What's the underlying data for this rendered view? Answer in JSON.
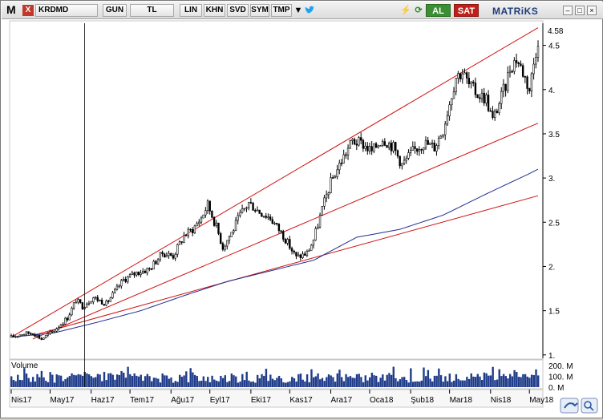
{
  "toolbar": {
    "app_icon": "M",
    "symbol_icon": "X",
    "symbol": "KRDMD",
    "period": "GUN",
    "currency": "TL",
    "scale": "LIN",
    "kahn_label": "KHN",
    "svd_label": "SVD",
    "sym_label": "SYM",
    "tmp_label": "TMP",
    "menu_icon": "dropdown-arrow-icon",
    "twitter_icon": "bird-icon",
    "lightning_icon": "lightning-icon",
    "refresh_icon": "refresh-icon",
    "buy_label": "AL",
    "sell_label": "SAT",
    "brand": "MATRiKS",
    "window_buttons": [
      "–",
      "□",
      "×"
    ]
  },
  "colors": {
    "candle": "#000000",
    "channel_line": "#d01010",
    "moving_average": "#1f2f8f",
    "volume": "#1f3c8a",
    "buy": "#3a8f32",
    "sell": "#c0201a"
  },
  "chart_data": {
    "type": "candlestick",
    "x_tick_labels": [
      "Nis17",
      "May17",
      "Haz17",
      "Tem17",
      "Ağu17",
      "Eyl17",
      "Eki17",
      "Kas17",
      "Ara17",
      "Oca18",
      "Şub18",
      "Mar18",
      "Nis18",
      "May18"
    ],
    "y_tick_labels": [
      "1.",
      "1.5",
      "2.",
      "2.5",
      "3.",
      "3.5",
      "4.",
      "4.5"
    ],
    "y_ticks": [
      1,
      1.5,
      2,
      2.5,
      3,
      3.5,
      4,
      4.5
    ],
    "ylim": [
      0.98,
      4.75
    ],
    "last_price_label": "4.58",
    "close_path": [
      [
        0,
        1.2
      ],
      [
        5,
        1.24
      ],
      [
        10,
        1.25
      ],
      [
        14,
        1.18
      ],
      [
        20,
        1.28
      ],
      [
        26,
        1.42
      ],
      [
        30,
        1.62
      ],
      [
        33,
        1.55
      ],
      [
        38,
        1.65
      ],
      [
        44,
        1.58
      ],
      [
        52,
        1.85
      ],
      [
        58,
        1.93
      ],
      [
        64,
        1.97
      ],
      [
        70,
        2.15
      ],
      [
        75,
        2.12
      ],
      [
        80,
        2.35
      ],
      [
        84,
        2.42
      ],
      [
        88,
        2.55
      ],
      [
        91,
        2.7
      ],
      [
        95,
        2.45
      ],
      [
        98,
        2.22
      ],
      [
        102,
        2.38
      ],
      [
        106,
        2.58
      ],
      [
        110,
        2.72
      ],
      [
        115,
        2.62
      ],
      [
        120,
        2.55
      ],
      [
        126,
        2.35
      ],
      [
        132,
        2.1
      ],
      [
        137,
        2.15
      ],
      [
        140,
        2.3
      ],
      [
        144,
        2.65
      ],
      [
        148,
        2.95
      ],
      [
        153,
        3.2
      ],
      [
        158,
        3.42
      ],
      [
        163,
        3.38
      ],
      [
        167,
        3.3
      ],
      [
        172,
        3.45
      ],
      [
        177,
        3.35
      ],
      [
        181,
        3.15
      ],
      [
        186,
        3.3
      ],
      [
        191,
        3.4
      ],
      [
        196,
        3.35
      ],
      [
        200,
        3.55
      ],
      [
        203,
        3.85
      ],
      [
        206,
        4.15
      ],
      [
        209,
        4.2
      ],
      [
        212,
        4.05
      ],
      [
        216,
        3.95
      ],
      [
        220,
        3.9
      ],
      [
        223,
        3.65
      ],
      [
        226,
        3.85
      ],
      [
        229,
        4.05
      ],
      [
        231,
        4.25
      ],
      [
        234,
        4.35
      ],
      [
        237,
        4.2
      ],
      [
        240,
        4.0
      ],
      [
        242,
        4.3
      ],
      [
        244,
        4.58
      ]
    ],
    "ma_path": [
      [
        0,
        1.2
      ],
      [
        20,
        1.25
      ],
      [
        40,
        1.37
      ],
      [
        60,
        1.5
      ],
      [
        80,
        1.67
      ],
      [
        100,
        1.83
      ],
      [
        120,
        1.95
      ],
      [
        140,
        2.07
      ],
      [
        150,
        2.2
      ],
      [
        160,
        2.33
      ],
      [
        180,
        2.42
      ],
      [
        200,
        2.58
      ],
      [
        220,
        2.82
      ],
      [
        240,
        3.05
      ],
      [
        244,
        3.1
      ]
    ],
    "channel_lines": [
      {
        "name": "upper",
        "start": [
          0,
          1.2
        ],
        "end": [
          244,
          4.7
        ]
      },
      {
        "name": "middle",
        "start": [
          10,
          1.18
        ],
        "end": [
          244,
          3.62
        ]
      },
      {
        "name": "lower",
        "start": [
          10,
          1.22
        ],
        "end": [
          244,
          2.8
        ]
      }
    ],
    "cursor_index": 34,
    "volume": {
      "label": "Volume",
      "tick_labels": [
        "200. M",
        "100. M",
        "0. M"
      ],
      "ticks": [
        200,
        100,
        0
      ],
      "ylim": [
        0,
        230
      ]
    }
  }
}
